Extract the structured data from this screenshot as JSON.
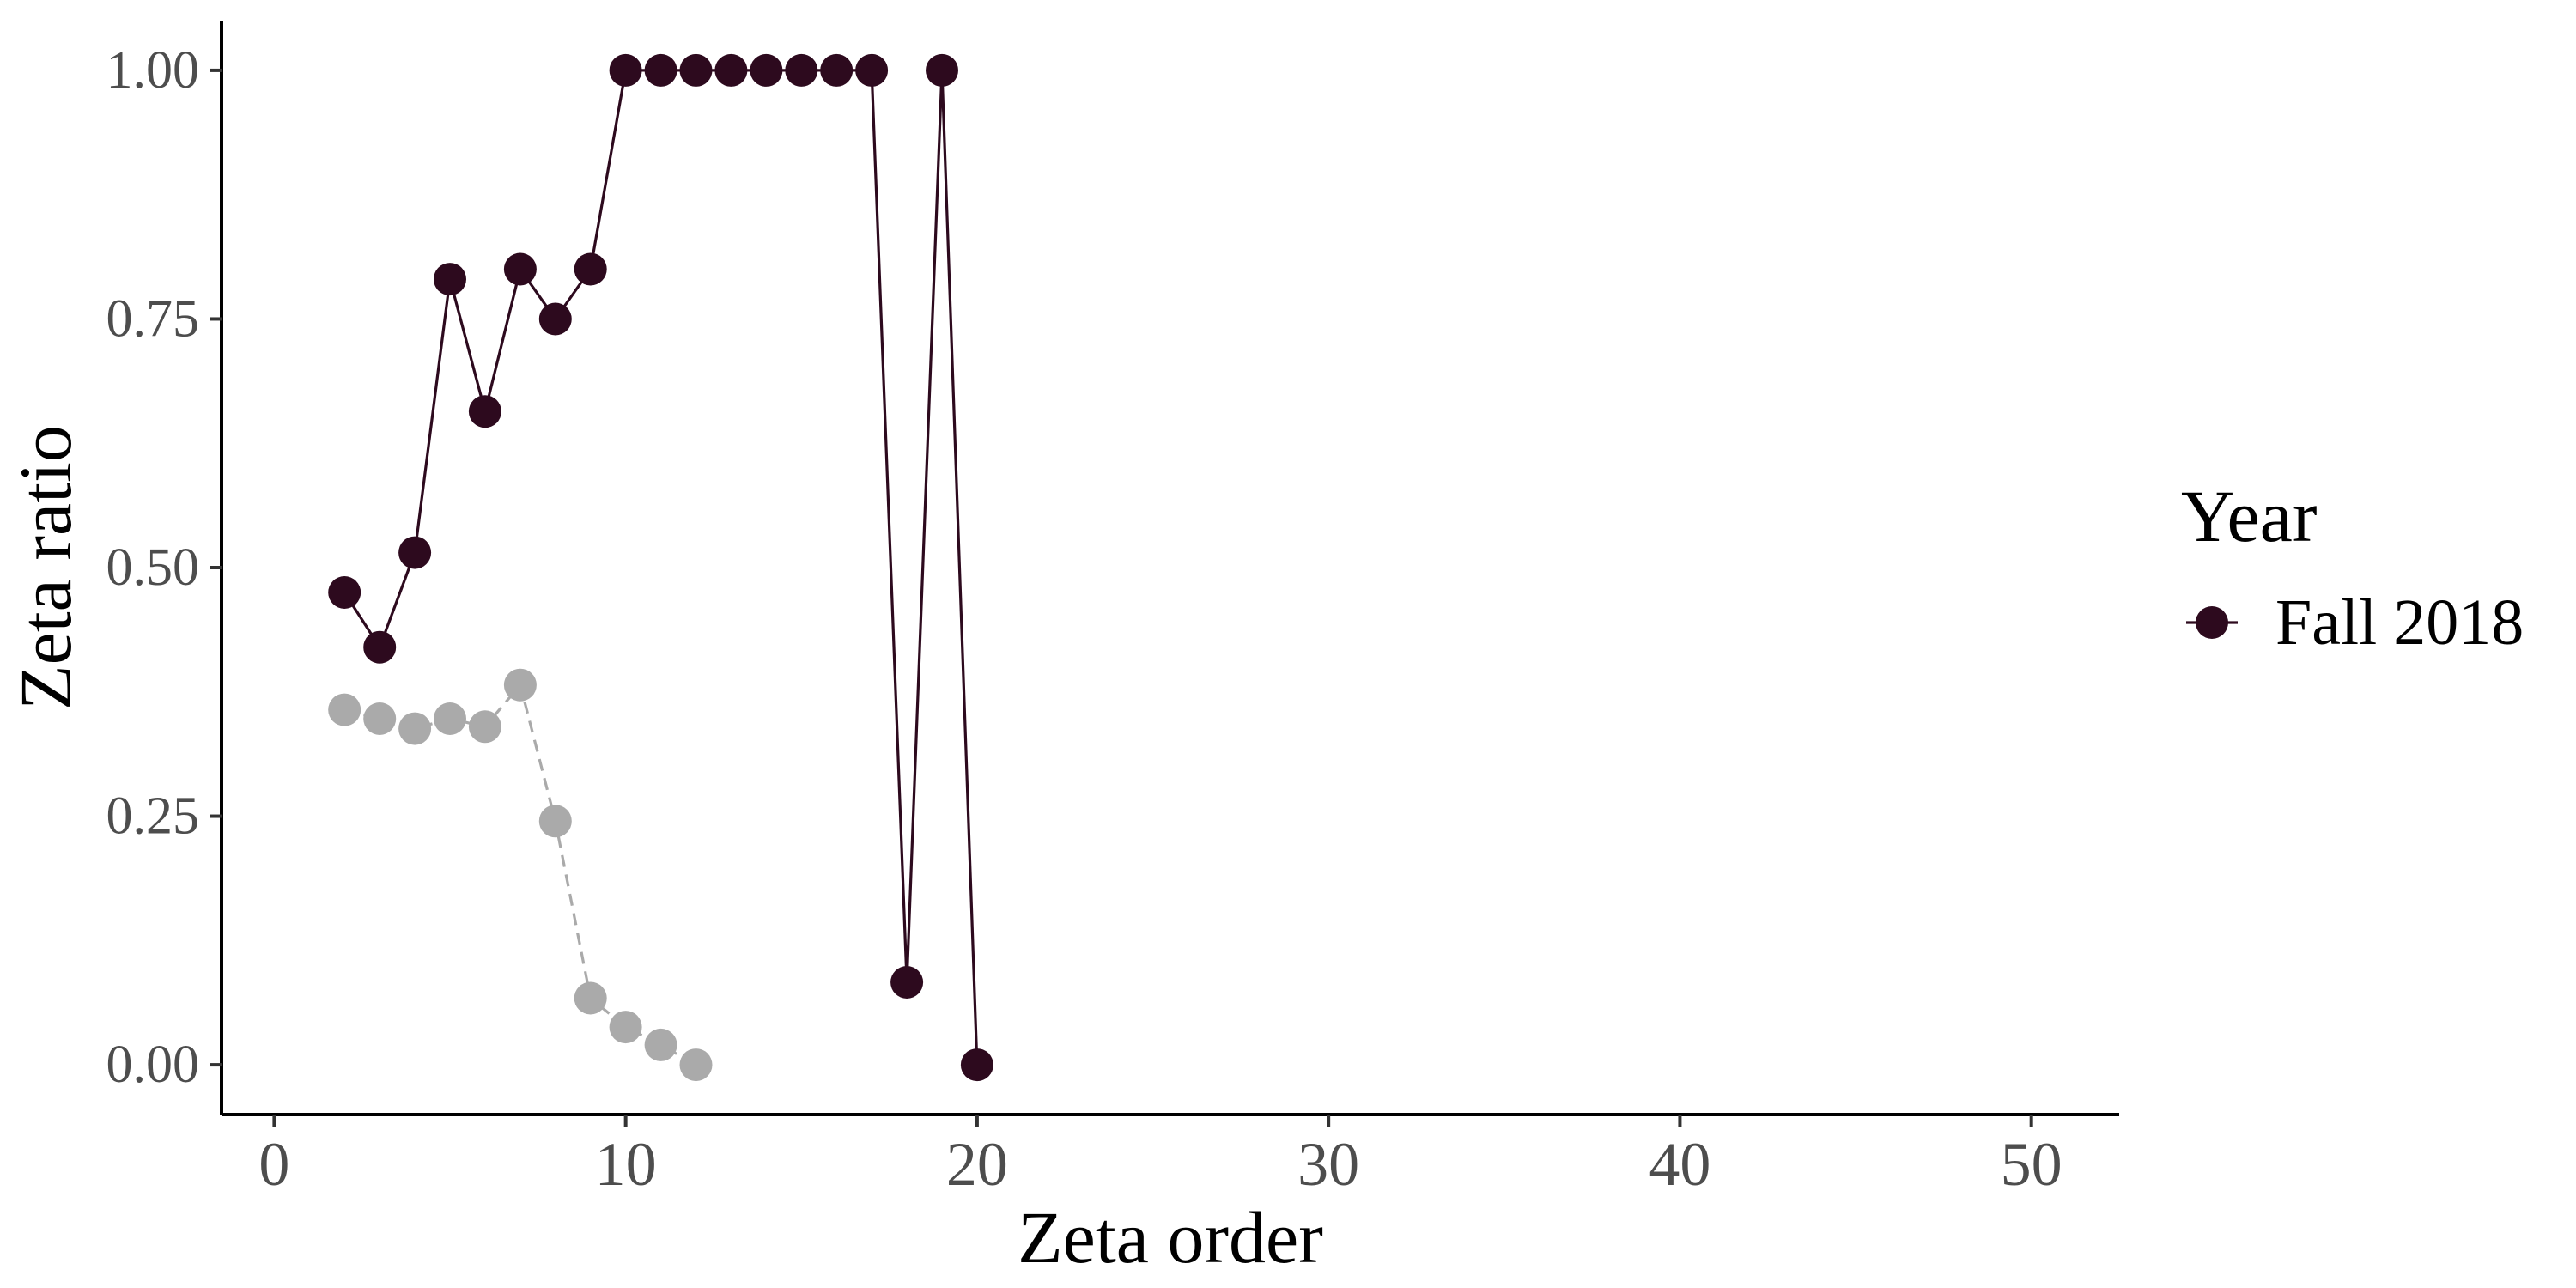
{
  "chart_data": {
    "type": "scatter",
    "xlabel": "Zeta order",
    "ylabel": "Zeta ratio",
    "xlim": [
      -1.5,
      52.5
    ],
    "ylim": [
      -0.05,
      1.05
    ],
    "x_ticks": [
      0,
      10,
      20,
      30,
      40,
      50
    ],
    "x_tick_labels": [
      "0",
      "10",
      "20",
      "30",
      "40",
      "50"
    ],
    "y_ticks": [
      0,
      0.25,
      0.5,
      0.75,
      1
    ],
    "y_tick_labels": [
      "0.00",
      "0.25",
      "0.50",
      "0.75",
      "1.00"
    ],
    "grid": false,
    "legend": {
      "title": "Year",
      "position": "right",
      "entries": [
        {
          "label": "Fall 2018",
          "color": "#2d0a1e"
        }
      ]
    },
    "series": [
      {
        "name": "Fall 2018",
        "color": "#2d0a1e",
        "line_style": "solid",
        "x": [
          2,
          3,
          4,
          5,
          6,
          7,
          8,
          9,
          10,
          11,
          12,
          13,
          14,
          15,
          16,
          17,
          18,
          19,
          20
        ],
        "y": [
          0.475,
          0.42,
          0.515,
          0.79,
          0.657,
          0.8,
          0.75,
          0.8,
          1.0,
          1.0,
          1.0,
          1.0,
          1.0,
          1.0,
          1.0,
          1.0,
          0.083,
          1.0,
          0.0
        ]
      },
      {
        "color": "#aaaaaa",
        "line_style": "dashed",
        "x": [
          2,
          3,
          4,
          5,
          6,
          7,
          8,
          9,
          10,
          11,
          12
        ],
        "y": [
          0.357,
          0.348,
          0.338,
          0.348,
          0.34,
          0.382,
          0.245,
          0.067,
          0.038,
          0.02,
          0.0
        ]
      }
    ]
  }
}
